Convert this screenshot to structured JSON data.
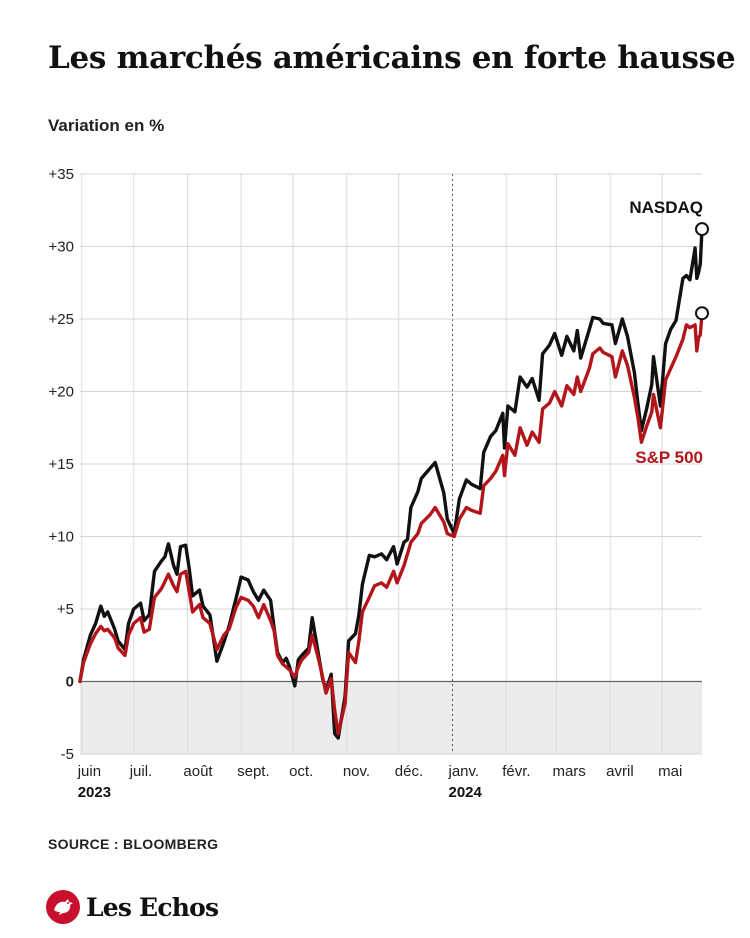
{
  "colors": {
    "nasdaq": "#111111",
    "sp500": "#b3151b",
    "brand": "#c8102e"
  },
  "chart_data": {
    "type": "line",
    "title": "Les marchés américains en forte hausse",
    "ylabel": "Variation en %",
    "ylim": [
      -5,
      35
    ],
    "yticks": [
      {
        "value": 35,
        "label": "+35"
      },
      {
        "value": 30,
        "label": "+30"
      },
      {
        "value": 25,
        "label": "+25"
      },
      {
        "value": 20,
        "label": "+20"
      },
      {
        "value": 15,
        "label": "+15"
      },
      {
        "value": 10,
        "label": "+10"
      },
      {
        "value": 5,
        "label": "+5"
      },
      {
        "value": 0,
        "label": "0"
      },
      {
        "value": -5,
        "label": "-5"
      }
    ],
    "xlim": [
      "2023-05-31",
      "2024-05-24"
    ],
    "xticks": [
      {
        "date": "2023-06-01",
        "label": "juin",
        "year": "2023"
      },
      {
        "date": "2023-07-01",
        "label": "juil.",
        "year": ""
      },
      {
        "date": "2023-08-01",
        "label": "août",
        "year": ""
      },
      {
        "date": "2023-09-01",
        "label": "sept.",
        "year": ""
      },
      {
        "date": "2023-10-01",
        "label": "oct.",
        "year": ""
      },
      {
        "date": "2023-11-01",
        "label": "nov.",
        "year": ""
      },
      {
        "date": "2023-12-01",
        "label": "déc.",
        "year": ""
      },
      {
        "date": "2024-01-01",
        "label": "janv.",
        "year": "2024"
      },
      {
        "date": "2024-02-01",
        "label": "févr.",
        "year": ""
      },
      {
        "date": "2024-03-01",
        "label": "mars",
        "year": ""
      },
      {
        "date": "2024-04-01",
        "label": "avril",
        "year": ""
      },
      {
        "date": "2024-05-01",
        "label": "mai",
        "year": ""
      }
    ],
    "grid": true,
    "negative_band": true,
    "series": [
      {
        "name": "NASDAQ",
        "end_value": 31.2,
        "points": [
          [
            "2023-05-31",
            0
          ],
          [
            "2023-06-02",
            1.5
          ],
          [
            "2023-06-06",
            3.2
          ],
          [
            "2023-06-09",
            4.0
          ],
          [
            "2023-06-12",
            5.2
          ],
          [
            "2023-06-14",
            4.5
          ],
          [
            "2023-06-16",
            4.8
          ],
          [
            "2023-06-20",
            3.6
          ],
          [
            "2023-06-22",
            2.8
          ],
          [
            "2023-06-26",
            2.2
          ],
          [
            "2023-06-28",
            4.0
          ],
          [
            "2023-07-01",
            5.0
          ],
          [
            "2023-07-05",
            5.4
          ],
          [
            "2023-07-07",
            4.2
          ],
          [
            "2023-07-10",
            4.6
          ],
          [
            "2023-07-13",
            7.6
          ],
          [
            "2023-07-17",
            8.3
          ],
          [
            "2023-07-19",
            8.6
          ],
          [
            "2023-07-21",
            9.5
          ],
          [
            "2023-07-24",
            8.0
          ],
          [
            "2023-07-26",
            7.4
          ],
          [
            "2023-07-28",
            9.3
          ],
          [
            "2023-07-31",
            9.4
          ],
          [
            "2023-08-02",
            7.8
          ],
          [
            "2023-08-04",
            5.9
          ],
          [
            "2023-08-08",
            6.3
          ],
          [
            "2023-08-10",
            5.2
          ],
          [
            "2023-08-14",
            4.6
          ],
          [
            "2023-08-18",
            1.4
          ],
          [
            "2023-08-22",
            2.7
          ],
          [
            "2023-08-25",
            3.8
          ],
          [
            "2023-08-29",
            5.7
          ],
          [
            "2023-09-01",
            7.2
          ],
          [
            "2023-09-05",
            7.0
          ],
          [
            "2023-09-08",
            6.2
          ],
          [
            "2023-09-11",
            5.6
          ],
          [
            "2023-09-14",
            6.3
          ],
          [
            "2023-09-18",
            5.6
          ],
          [
            "2023-09-20",
            3.7
          ],
          [
            "2023-09-22",
            2.0
          ],
          [
            "2023-09-25",
            1.3
          ],
          [
            "2023-09-27",
            1.6
          ],
          [
            "2023-09-29",
            1.0
          ],
          [
            "2023-10-02",
            -0.3
          ],
          [
            "2023-10-04",
            1.5
          ],
          [
            "2023-10-06",
            1.8
          ],
          [
            "2023-10-10",
            2.3
          ],
          [
            "2023-10-12",
            4.4
          ],
          [
            "2023-10-16",
            1.6
          ],
          [
            "2023-10-18",
            0.2
          ],
          [
            "2023-10-20",
            -0.6
          ],
          [
            "2023-10-23",
            0.5
          ],
          [
            "2023-10-25",
            -3.6
          ],
          [
            "2023-10-27",
            -3.9
          ],
          [
            "2023-10-31",
            -1.0
          ],
          [
            "2023-11-02",
            2.8
          ],
          [
            "2023-11-06",
            3.3
          ],
          [
            "2023-11-08",
            4.6
          ],
          [
            "2023-11-10",
            6.7
          ],
          [
            "2023-11-14",
            8.7
          ],
          [
            "2023-11-17",
            8.6
          ],
          [
            "2023-11-21",
            8.8
          ],
          [
            "2023-11-24",
            8.4
          ],
          [
            "2023-11-28",
            9.3
          ],
          [
            "2023-11-30",
            8.1
          ],
          [
            "2023-12-04",
            9.6
          ],
          [
            "2023-12-06",
            9.8
          ],
          [
            "2023-12-08",
            12.0
          ],
          [
            "2023-12-12",
            13.1
          ],
          [
            "2023-12-14",
            14.0
          ],
          [
            "2023-12-19",
            14.7
          ],
          [
            "2023-12-22",
            15.1
          ],
          [
            "2023-12-27",
            13.0
          ],
          [
            "2023-12-29",
            11.2
          ],
          [
            "2024-01-02",
            10.2
          ],
          [
            "2024-01-05",
            12.6
          ],
          [
            "2024-01-09",
            13.9
          ],
          [
            "2024-01-12",
            13.6
          ],
          [
            "2024-01-17",
            13.3
          ],
          [
            "2024-01-19",
            15.8
          ],
          [
            "2024-01-23",
            16.9
          ],
          [
            "2024-01-26",
            17.3
          ],
          [
            "2024-01-30",
            18.5
          ],
          [
            "2024-01-31",
            16.1
          ],
          [
            "2024-02-02",
            19.0
          ],
          [
            "2024-02-06",
            18.6
          ],
          [
            "2024-02-09",
            21.0
          ],
          [
            "2024-02-13",
            20.3
          ],
          [
            "2024-02-16",
            20.9
          ],
          [
            "2024-02-20",
            19.4
          ],
          [
            "2024-02-22",
            22.6
          ],
          [
            "2024-02-26",
            23.2
          ],
          [
            "2024-02-29",
            24.0
          ],
          [
            "2024-03-04",
            22.5
          ],
          [
            "2024-03-07",
            23.8
          ],
          [
            "2024-03-11",
            22.8
          ],
          [
            "2024-03-13",
            24.2
          ],
          [
            "2024-03-15",
            22.3
          ],
          [
            "2024-03-20",
            24.3
          ],
          [
            "2024-03-22",
            25.1
          ],
          [
            "2024-03-26",
            25.0
          ],
          [
            "2024-03-28",
            24.7
          ],
          [
            "2024-04-02",
            24.6
          ],
          [
            "2024-04-04",
            23.3
          ],
          [
            "2024-04-08",
            25.0
          ],
          [
            "2024-04-11",
            23.8
          ],
          [
            "2024-04-15",
            21.3
          ],
          [
            "2024-04-17",
            19.2
          ],
          [
            "2024-04-19",
            17.3
          ],
          [
            "2024-04-22",
            18.8
          ],
          [
            "2024-04-25",
            20.5
          ],
          [
            "2024-04-26",
            22.4
          ],
          [
            "2024-04-30",
            19.0
          ],
          [
            "2024-05-03",
            23.3
          ],
          [
            "2024-05-06",
            24.3
          ],
          [
            "2024-05-09",
            24.9
          ],
          [
            "2024-05-13",
            27.8
          ],
          [
            "2024-05-15",
            28.0
          ],
          [
            "2024-05-17",
            27.7
          ],
          [
            "2024-05-20",
            29.9
          ],
          [
            "2024-05-21",
            27.8
          ],
          [
            "2024-05-22",
            28.2
          ],
          [
            "2024-05-23",
            28.8
          ],
          [
            "2024-05-24",
            31.2
          ]
        ]
      },
      {
        "name": "S&P 500",
        "end_value": 25.4,
        "points": [
          [
            "2023-05-31",
            0
          ],
          [
            "2023-06-02",
            1.3
          ],
          [
            "2023-06-06",
            2.6
          ],
          [
            "2023-06-09",
            3.3
          ],
          [
            "2023-06-12",
            3.8
          ],
          [
            "2023-06-14",
            3.5
          ],
          [
            "2023-06-16",
            3.6
          ],
          [
            "2023-06-20",
            3.0
          ],
          [
            "2023-06-22",
            2.3
          ],
          [
            "2023-06-26",
            1.8
          ],
          [
            "2023-06-28",
            3.2
          ],
          [
            "2023-07-01",
            4.0
          ],
          [
            "2023-07-05",
            4.4
          ],
          [
            "2023-07-07",
            3.4
          ],
          [
            "2023-07-10",
            3.6
          ],
          [
            "2023-07-13",
            5.8
          ],
          [
            "2023-07-17",
            6.4
          ],
          [
            "2023-07-19",
            6.9
          ],
          [
            "2023-07-21",
            7.4
          ],
          [
            "2023-07-24",
            6.6
          ],
          [
            "2023-07-26",
            6.2
          ],
          [
            "2023-07-28",
            7.4
          ],
          [
            "2023-07-31",
            7.6
          ],
          [
            "2023-08-02",
            6.2
          ],
          [
            "2023-08-04",
            4.8
          ],
          [
            "2023-08-08",
            5.3
          ],
          [
            "2023-08-10",
            4.4
          ],
          [
            "2023-08-14",
            4.0
          ],
          [
            "2023-08-18",
            2.2
          ],
          [
            "2023-08-22",
            3.2
          ],
          [
            "2023-08-25",
            3.6
          ],
          [
            "2023-08-29",
            5.1
          ],
          [
            "2023-09-01",
            5.8
          ],
          [
            "2023-09-05",
            5.6
          ],
          [
            "2023-09-08",
            5.2
          ],
          [
            "2023-09-11",
            4.4
          ],
          [
            "2023-09-14",
            5.3
          ],
          [
            "2023-09-18",
            4.2
          ],
          [
            "2023-09-20",
            3.5
          ],
          [
            "2023-09-22",
            1.8
          ],
          [
            "2023-09-25",
            1.2
          ],
          [
            "2023-09-27",
            1.0
          ],
          [
            "2023-09-29",
            0.8
          ],
          [
            "2023-10-02",
            0.3
          ],
          [
            "2023-10-04",
            1.0
          ],
          [
            "2023-10-06",
            1.5
          ],
          [
            "2023-10-10",
            2.0
          ],
          [
            "2023-10-12",
            3.2
          ],
          [
            "2023-10-16",
            1.4
          ],
          [
            "2023-10-18",
            0.3
          ],
          [
            "2023-10-20",
            -0.8
          ],
          [
            "2023-10-23",
            0.2
          ],
          [
            "2023-10-25",
            -2.0
          ],
          [
            "2023-10-27",
            -3.6
          ],
          [
            "2023-10-31",
            -1.5
          ],
          [
            "2023-11-02",
            2.0
          ],
          [
            "2023-11-06",
            1.3
          ],
          [
            "2023-11-08",
            2.8
          ],
          [
            "2023-11-10",
            4.8
          ],
          [
            "2023-11-14",
            5.8
          ],
          [
            "2023-11-17",
            6.6
          ],
          [
            "2023-11-21",
            6.8
          ],
          [
            "2023-11-24",
            6.5
          ],
          [
            "2023-11-28",
            7.6
          ],
          [
            "2023-11-30",
            6.8
          ],
          [
            "2023-12-04",
            8.0
          ],
          [
            "2023-12-06",
            8.8
          ],
          [
            "2023-12-08",
            9.6
          ],
          [
            "2023-12-12",
            10.2
          ],
          [
            "2023-12-14",
            10.9
          ],
          [
            "2023-12-19",
            11.5
          ],
          [
            "2023-12-22",
            12.0
          ],
          [
            "2023-12-27",
            11.0
          ],
          [
            "2023-12-29",
            10.2
          ],
          [
            "2024-01-02",
            10.0
          ],
          [
            "2024-01-05",
            11.2
          ],
          [
            "2024-01-09",
            12.0
          ],
          [
            "2024-01-12",
            11.8
          ],
          [
            "2024-01-17",
            11.6
          ],
          [
            "2024-01-19",
            13.5
          ],
          [
            "2024-01-23",
            14.0
          ],
          [
            "2024-01-26",
            14.5
          ],
          [
            "2024-01-30",
            15.6
          ],
          [
            "2024-01-31",
            14.2
          ],
          [
            "2024-02-02",
            16.4
          ],
          [
            "2024-02-06",
            15.6
          ],
          [
            "2024-02-09",
            17.5
          ],
          [
            "2024-02-13",
            16.3
          ],
          [
            "2024-02-16",
            17.2
          ],
          [
            "2024-02-20",
            16.5
          ],
          [
            "2024-02-22",
            18.8
          ],
          [
            "2024-02-26",
            19.2
          ],
          [
            "2024-02-29",
            20.0
          ],
          [
            "2024-03-04",
            19.0
          ],
          [
            "2024-03-07",
            20.4
          ],
          [
            "2024-03-11",
            19.8
          ],
          [
            "2024-03-13",
            21.0
          ],
          [
            "2024-03-15",
            20.0
          ],
          [
            "2024-03-20",
            21.6
          ],
          [
            "2024-03-22",
            22.6
          ],
          [
            "2024-03-26",
            23.0
          ],
          [
            "2024-03-28",
            22.7
          ],
          [
            "2024-04-02",
            22.4
          ],
          [
            "2024-04-04",
            21.0
          ],
          [
            "2024-04-08",
            22.8
          ],
          [
            "2024-04-11",
            21.8
          ],
          [
            "2024-04-15",
            19.6
          ],
          [
            "2024-04-17",
            18.2
          ],
          [
            "2024-04-19",
            16.5
          ],
          [
            "2024-04-22",
            17.6
          ],
          [
            "2024-04-25",
            18.6
          ],
          [
            "2024-04-26",
            19.8
          ],
          [
            "2024-04-30",
            17.5
          ],
          [
            "2024-05-03",
            20.8
          ],
          [
            "2024-05-06",
            21.6
          ],
          [
            "2024-05-09",
            22.4
          ],
          [
            "2024-05-13",
            23.6
          ],
          [
            "2024-05-15",
            24.6
          ],
          [
            "2024-05-17",
            24.4
          ],
          [
            "2024-05-20",
            24.6
          ],
          [
            "2024-05-21",
            22.8
          ],
          [
            "2024-05-22",
            23.7
          ],
          [
            "2024-05-23",
            23.9
          ],
          [
            "2024-05-24",
            25.4
          ]
        ]
      }
    ]
  },
  "source": "SOURCE : BLOOMBERG",
  "logo": {
    "text": "Les Echos"
  }
}
